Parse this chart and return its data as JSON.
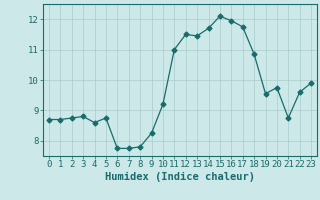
{
  "x": [
    0,
    1,
    2,
    3,
    4,
    5,
    6,
    7,
    8,
    9,
    10,
    11,
    12,
    13,
    14,
    15,
    16,
    17,
    18,
    19,
    20,
    21,
    22,
    23
  ],
  "y": [
    8.7,
    8.7,
    8.75,
    8.8,
    8.6,
    8.75,
    7.75,
    7.75,
    7.8,
    8.25,
    9.2,
    11.0,
    11.5,
    11.45,
    11.7,
    12.1,
    11.95,
    11.75,
    10.85,
    9.55,
    9.75,
    8.75,
    9.6,
    9.9
  ],
  "line_color": "#1a6b6b",
  "marker": "D",
  "marker_size": 2.5,
  "bg_color": "#cce8e8",
  "grid_color": "#aacaca",
  "xlabel": "Humidex (Indice chaleur)",
  "xlim": [
    -0.5,
    23.5
  ],
  "ylim": [
    7.5,
    12.5
  ],
  "yticks": [
    8,
    9,
    10,
    11,
    12
  ],
  "xticks": [
    0,
    1,
    2,
    3,
    4,
    5,
    6,
    7,
    8,
    9,
    10,
    11,
    12,
    13,
    14,
    15,
    16,
    17,
    18,
    19,
    20,
    21,
    22,
    23
  ],
  "tick_color": "#1a6b6b",
  "label_color": "#1a6b6b",
  "axis_color": "#1a6b6b",
  "xlabel_fontsize": 7.5,
  "tick_fontsize": 6.5
}
